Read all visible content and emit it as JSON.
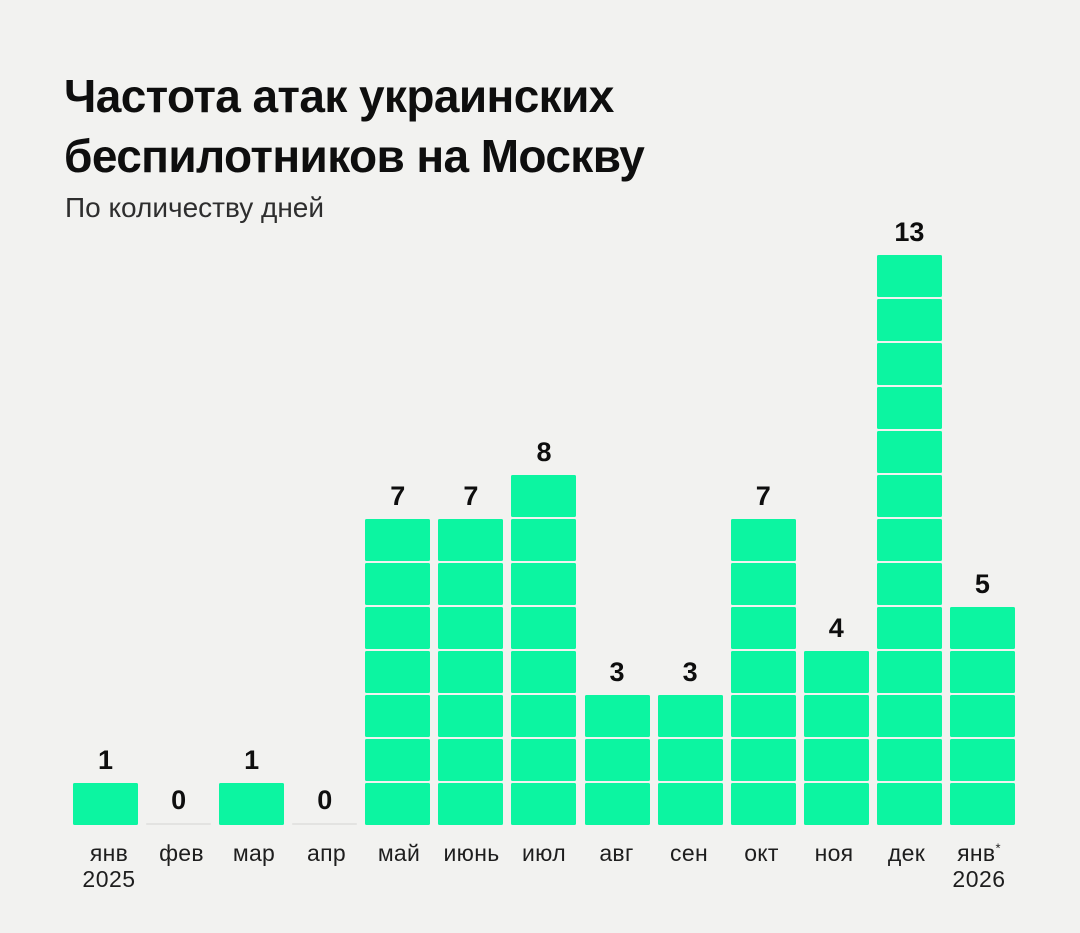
{
  "page": {
    "background_color": "#f2f2f0"
  },
  "header": {
    "title_line1": "Частота атак украинских",
    "title_line2": "беспилотников на Москву",
    "subtitle": "По количеству дней"
  },
  "chart_data": {
    "type": "bar",
    "title": "Частота атак украинских беспилотников на Москву",
    "subtitle": "По количеству дней",
    "categories": [
      "янв",
      "фев",
      "мар",
      "апр",
      "май",
      "июнь",
      "июл",
      "авг",
      "сен",
      "окт",
      "ноя",
      "дек",
      "янв*"
    ],
    "values": [
      1,
      0,
      1,
      0,
      7,
      7,
      8,
      3,
      3,
      7,
      4,
      13,
      5
    ],
    "year_labels": [
      {
        "index": 0,
        "label": "2025"
      },
      {
        "index": 12,
        "label": "2026"
      }
    ],
    "value_labels_shown": true,
    "bar_color": "#0cf5a1",
    "unit_gap_color": "#ffffff",
    "zero_line_color": "#e3e3e1",
    "ylim": [
      0,
      13
    ],
    "grid": false,
    "legend": false,
    "note": "Each bar is a stack of unit squares; one square = one day with attacks in that month"
  }
}
